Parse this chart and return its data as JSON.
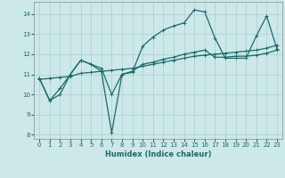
{
  "xlabel": "Humidex (Indice chaleur)",
  "xlim": [
    -0.5,
    23.5
  ],
  "ylim": [
    7.8,
    14.6
  ],
  "xticks": [
    0,
    1,
    2,
    3,
    4,
    5,
    6,
    7,
    8,
    9,
    10,
    11,
    12,
    13,
    14,
    15,
    16,
    17,
    18,
    19,
    20,
    21,
    22,
    23
  ],
  "yticks": [
    8,
    9,
    10,
    11,
    12,
    13,
    14
  ],
  "bg_color": "#cce8e8",
  "grid_color": "#aad0d0",
  "line_color": "#1a6b6b",
  "line1_x": [
    0,
    1,
    2,
    3,
    4,
    5,
    6,
    7,
    8,
    9,
    10,
    11,
    12,
    13,
    14,
    15,
    16,
    17,
    18,
    19,
    20,
    21,
    22,
    23
  ],
  "line1_y": [
    10.8,
    9.7,
    10.0,
    11.0,
    11.7,
    11.5,
    11.15,
    8.1,
    11.0,
    11.1,
    12.4,
    12.85,
    13.2,
    13.4,
    13.55,
    14.2,
    14.1,
    12.8,
    11.8,
    11.8,
    11.8,
    12.9,
    13.9,
    12.25
  ],
  "line2_x": [
    0,
    1,
    2,
    3,
    4,
    5,
    6,
    7,
    8,
    9,
    10,
    11,
    12,
    13,
    14,
    15,
    16,
    17,
    18,
    19,
    20,
    21,
    22,
    23
  ],
  "line2_y": [
    10.8,
    9.7,
    10.3,
    11.0,
    11.7,
    11.5,
    11.3,
    10.0,
    11.0,
    11.15,
    11.5,
    11.6,
    11.75,
    11.85,
    12.0,
    12.1,
    12.2,
    11.85,
    11.85,
    11.9,
    11.9,
    11.95,
    12.05,
    12.2
  ],
  "line3_x": [
    0,
    1,
    2,
    3,
    4,
    5,
    6,
    7,
    8,
    9,
    10,
    11,
    12,
    13,
    14,
    15,
    16,
    17,
    18,
    19,
    20,
    21,
    22,
    23
  ],
  "line3_y": [
    10.75,
    10.8,
    10.85,
    10.9,
    11.05,
    11.1,
    11.15,
    11.2,
    11.25,
    11.3,
    11.4,
    11.5,
    11.6,
    11.7,
    11.8,
    11.9,
    11.95,
    12.0,
    12.05,
    12.1,
    12.15,
    12.2,
    12.3,
    12.45
  ]
}
